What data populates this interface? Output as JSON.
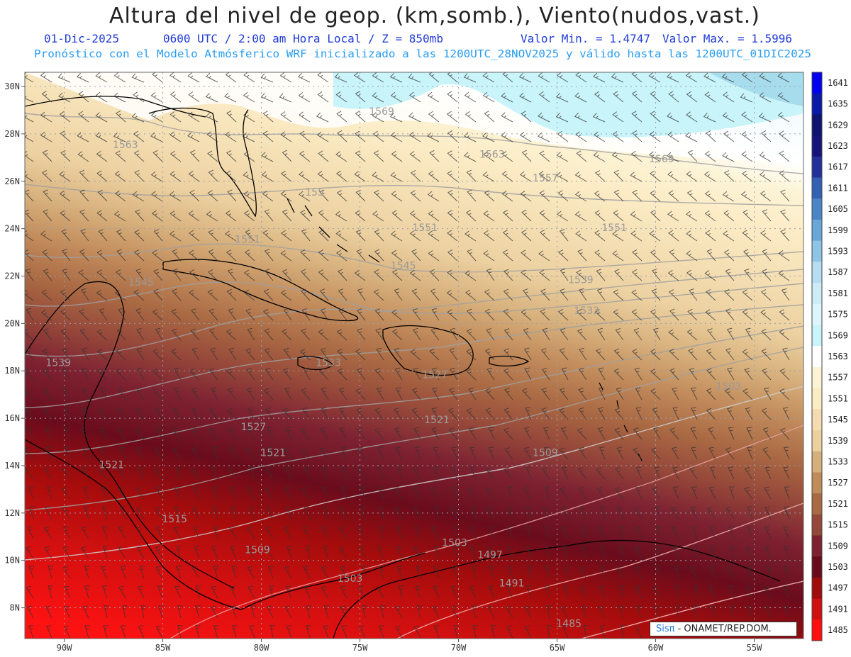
{
  "header": {
    "title": "Altura del nivel de geop. (km,somb.), Viento(nudos,vast.)",
    "date": "01-Dic-2025",
    "time": "0600 UTC / 2:00 am Hora Local / Z = 850mb",
    "valmin": "Valor Min. = 1.4747",
    "valmax": "Valor Max. = 1.5996",
    "forecast": "Pronóstico con el Modelo Atmósferico WRF inicializado a las 1200UTC_28NOV2025 y válido hasta las  1200UTC_01DIC2025"
  },
  "axes": {
    "lon_labels": [
      "90W",
      "85W",
      "80W",
      "75W",
      "70W",
      "65W",
      "60W",
      "55W"
    ],
    "lon_values": [
      -90,
      -85,
      -80,
      -75,
      -70,
      -65,
      -60,
      -55
    ],
    "lat_labels": [
      "30N",
      "28N",
      "26N",
      "24N",
      "22N",
      "20N",
      "18N",
      "16N",
      "14N",
      "12N",
      "10N",
      "8N"
    ],
    "lat_values": [
      30,
      28,
      26,
      24,
      22,
      20,
      18,
      16,
      14,
      12,
      10,
      8
    ],
    "lon_range": [
      -92.0,
      -52.5
    ],
    "lat_range": [
      6.7,
      30.6
    ]
  },
  "colorbar": {
    "labels": [
      "1641",
      "1635",
      "1629",
      "1623",
      "1617",
      "1611",
      "1605",
      "1599",
      "1593",
      "1587",
      "1581",
      "1575",
      "1569",
      "1563",
      "1557",
      "1551",
      "1545",
      "1539",
      "1533",
      "1527",
      "1521",
      "1515",
      "1509",
      "1503",
      "1497",
      "1491",
      "1485"
    ],
    "colors": [
      "#0000f0",
      "#0a1aa8",
      "#0c1470",
      "#14147a",
      "#23309a",
      "#3460b4",
      "#4a86c6",
      "#6aa6d8",
      "#90c4e6",
      "#b6def0",
      "#ccecf6",
      "#dcf6fc",
      "#c8f4fa",
      "#ffffff",
      "#fcf4d4",
      "#fcecc4",
      "#f4dcb0",
      "#ecd0a0",
      "#d6b07c",
      "#c08c5a",
      "#a86a44",
      "#94483a",
      "#7c2230",
      "#680c1c",
      "#a00c0c",
      "#d01010",
      "#ff1010"
    ]
  },
  "contour_labels": [
    {
      "text": "1569",
      "lon": -73.9,
      "lat": 28.8
    },
    {
      "text": "1563",
      "lon": -86.9,
      "lat": 27.4
    },
    {
      "text": "1563",
      "lon": -68.3,
      "lat": 27.0
    },
    {
      "text": "1569",
      "lon": -59.7,
      "lat": 26.8
    },
    {
      "text": "1557",
      "lon": -65.6,
      "lat": 26.0
    },
    {
      "text": "155",
      "lon": -77.3,
      "lat": 25.4
    },
    {
      "text": "1551",
      "lon": -71.7,
      "lat": 23.9
    },
    {
      "text": "1551",
      "lon": -62.1,
      "lat": 23.9
    },
    {
      "text": "1551",
      "lon": -80.7,
      "lat": 23.4
    },
    {
      "text": "1545",
      "lon": -72.8,
      "lat": 22.3
    },
    {
      "text": "1545",
      "lon": -86.1,
      "lat": 21.6
    },
    {
      "text": "1539",
      "lon": -63.8,
      "lat": 21.7
    },
    {
      "text": "1533",
      "lon": -63.5,
      "lat": 20.4
    },
    {
      "text": "1539",
      "lon": -90.3,
      "lat": 18.2
    },
    {
      "text": "1533",
      "lon": -76.6,
      "lat": 18.2
    },
    {
      "text": "1527",
      "lon": -71.2,
      "lat": 17.7
    },
    {
      "text": "1503",
      "lon": -56.3,
      "lat": 17.2
    },
    {
      "text": "1521",
      "lon": -71.1,
      "lat": 15.8
    },
    {
      "text": "1527",
      "lon": -80.4,
      "lat": 15.5
    },
    {
      "text": "1521",
      "lon": -79.4,
      "lat": 14.4
    },
    {
      "text": "1509",
      "lon": -65.6,
      "lat": 14.4
    },
    {
      "text": "1521",
      "lon": -87.6,
      "lat": 13.9
    },
    {
      "text": "1515",
      "lon": -84.4,
      "lat": 11.6
    },
    {
      "text": "1503",
      "lon": -70.2,
      "lat": 10.6
    },
    {
      "text": "1509",
      "lon": -80.2,
      "lat": 10.3
    },
    {
      "text": "1497",
      "lon": -68.4,
      "lat": 10.1
    },
    {
      "text": "1503",
      "lon": -75.5,
      "lat": 9.1
    },
    {
      "text": "1491",
      "lon": -67.3,
      "lat": 8.9
    },
    {
      "text": "1485",
      "lon": -64.4,
      "lat": 7.2
    }
  ],
  "credit": {
    "brand": "Sisπ",
    "text": " - ONAMET/REP.DOM."
  }
}
